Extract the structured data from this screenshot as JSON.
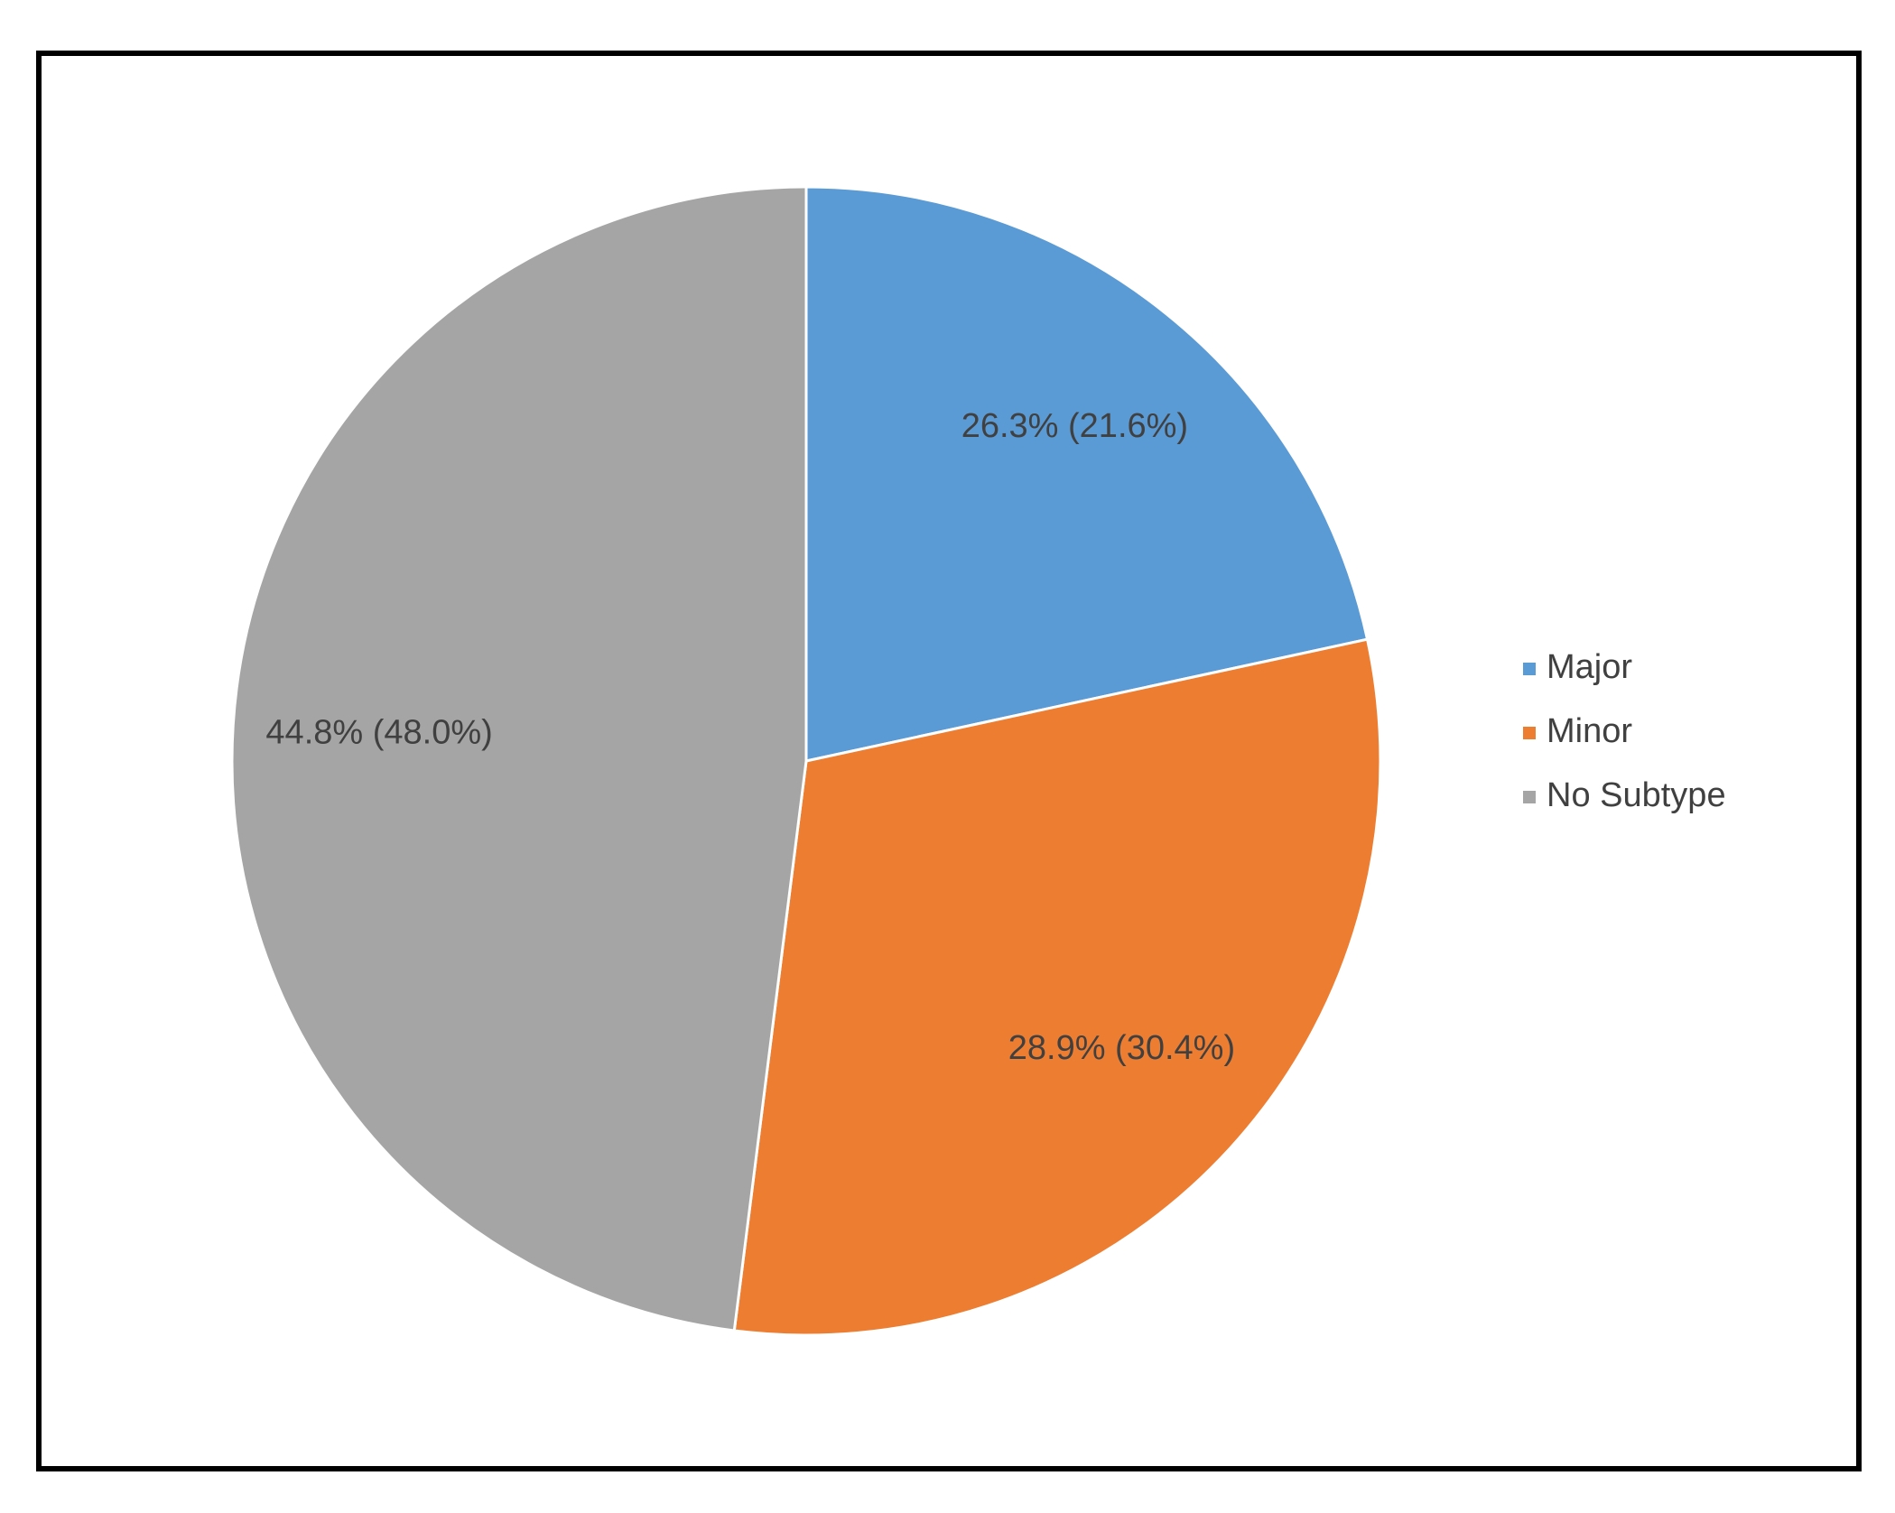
{
  "chart_data": {
    "type": "pie",
    "categories": [
      "Major",
      "Minor",
      "No Subtype"
    ],
    "values": [
      21.6,
      30.4,
      48.0
    ],
    "value_labels": [
      "26.3% (21.6%)",
      "28.9% (30.4%)",
      "44.8% (48.0%)"
    ],
    "colors": [
      "#5b9bd5",
      "#ed7d31",
      "#a5a5a5"
    ],
    "legend": "right"
  }
}
